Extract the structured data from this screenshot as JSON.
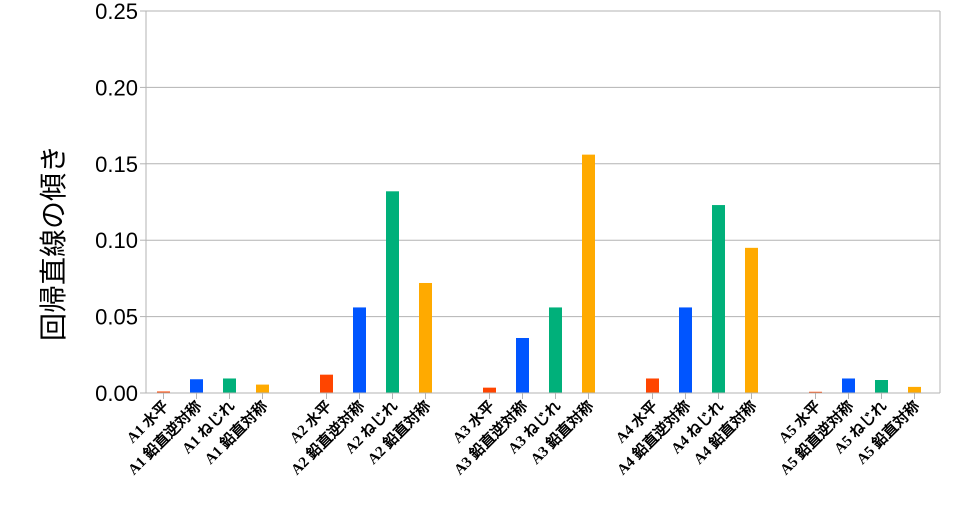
{
  "chart_data": {
    "type": "bar",
    "title": "",
    "xlabel": "",
    "ylabel": "回帰直線の傾き",
    "ylim": [
      0,
      0.25
    ],
    "yticks": [
      "0.00",
      "0.05",
      "0.10",
      "0.15",
      "0.20",
      "0.25"
    ],
    "grid": true,
    "legend": "none",
    "categories": [
      "A1 水平",
      "A1 鉛直逆対称",
      "A1 ねじれ",
      "A1 鉛直対称",
      "A2 水平",
      "A2 鉛直逆対称",
      "A2 ねじれ",
      "A2 鉛直対称",
      "A3 水平",
      "A3 鉛直逆対称",
      "A3 ねじれ",
      "A3 鉛直対称",
      "A4 水平",
      "A4 鉛直逆対称",
      "A4 ねじれ",
      "A4 鉛直対称",
      "A5 水平",
      "A5 鉛直逆対称",
      "A5 ねじれ",
      "A5 鉛直対称"
    ],
    "values": [
      0.001,
      0.009,
      0.0095,
      0.0055,
      0.012,
      0.056,
      0.132,
      0.072,
      0.0035,
      0.036,
      0.056,
      0.156,
      0.0095,
      0.056,
      0.123,
      0.095,
      0.0008,
      0.0095,
      0.0085,
      0.004
    ],
    "colors": [
      "#ff4500",
      "#0055ff",
      "#00b07a",
      "#ffaa00",
      "#ff4500",
      "#0055ff",
      "#00b07a",
      "#ffaa00",
      "#ff4500",
      "#0055ff",
      "#00b07a",
      "#ffaa00",
      "#ff4500",
      "#0055ff",
      "#00b07a",
      "#ffaa00",
      "#ff4500",
      "#0055ff",
      "#00b07a",
      "#ffaa00"
    ]
  }
}
